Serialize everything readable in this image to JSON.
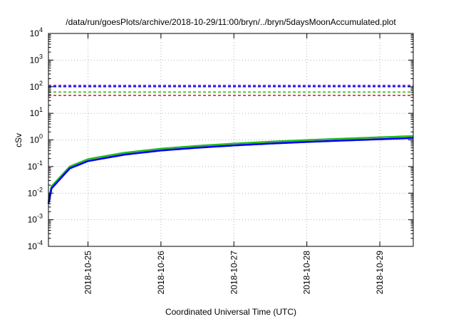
{
  "chart_data": {
    "type": "line",
    "title": "/data/run/goesPlots/archive/2018-10-29/11:00/bryn/../bryn/5daysMoonAccumulated.plot",
    "xlabel": "Coordinated Universal Time (UTC)",
    "ylabel": "cSv",
    "yscale": "log",
    "ylim_exp": [
      -4,
      4
    ],
    "y_tick_labels": [
      {
        "base": "10",
        "exp": "-4"
      },
      {
        "base": "10",
        "exp": "-3"
      },
      {
        "base": "10",
        "exp": "-2"
      },
      {
        "base": "10",
        "exp": "-1"
      },
      {
        "base": "10",
        "exp": "0"
      },
      {
        "base": "10",
        "exp": "1"
      },
      {
        "base": "10",
        "exp": "2"
      },
      {
        "base": "10",
        "exp": "3"
      },
      {
        "base": "10",
        "exp": "4"
      }
    ],
    "xlim": [
      "2018-10-24T11:00",
      "2018-10-29T11:00"
    ],
    "x_tick_labels": [
      "2018-10-25",
      "2018-10-26",
      "2018-10-27",
      "2018-10-28",
      "2018-10-29"
    ],
    "grid": true,
    "threshold_lines": [
      {
        "color": "#7b00c8",
        "value": 112
      },
      {
        "color": "#0000ff",
        "value": 100
      },
      {
        "color": "#22bb22",
        "value": 63
      },
      {
        "color": "#ff0000",
        "value": 47
      }
    ],
    "series": [
      {
        "color": "#ffd700",
        "x": [
          "2018-10-24T11:00",
          "2018-10-24T12:00",
          "2018-10-24T18:00",
          "2018-10-25T00:00",
          "2018-10-25T12:00",
          "2018-10-26T00:00",
          "2018-10-26T12:00",
          "2018-10-27T00:00",
          "2018-10-27T12:00",
          "2018-10-28T00:00",
          "2018-10-28T12:00",
          "2018-10-29T00:00",
          "2018-10-29T11:00"
        ],
        "y": [
          0.004,
          0.015,
          0.09,
          0.17,
          0.3,
          0.42,
          0.54,
          0.66,
          0.78,
          0.9,
          1.02,
          1.14,
          1.25
        ]
      },
      {
        "color": "#22bb22",
        "x": [
          "2018-10-24T11:00",
          "2018-10-24T12:00",
          "2018-10-24T18:00",
          "2018-10-25T00:00",
          "2018-10-25T12:00",
          "2018-10-26T00:00",
          "2018-10-26T12:00",
          "2018-10-27T00:00",
          "2018-10-27T12:00",
          "2018-10-28T00:00",
          "2018-10-28T12:00",
          "2018-10-29T00:00",
          "2018-10-29T11:00"
        ],
        "y": [
          0.005,
          0.018,
          0.1,
          0.19,
          0.33,
          0.47,
          0.6,
          0.73,
          0.86,
          0.99,
          1.12,
          1.26,
          1.4
        ]
      },
      {
        "color": "#0000ff",
        "x": [
          "2018-10-24T11:00",
          "2018-10-24T12:00",
          "2018-10-24T18:00",
          "2018-10-25T00:00",
          "2018-10-25T12:00",
          "2018-10-26T00:00",
          "2018-10-26T12:00",
          "2018-10-27T00:00",
          "2018-10-27T12:00",
          "2018-10-28T00:00",
          "2018-10-28T12:00",
          "2018-10-29T00:00",
          "2018-10-29T11:00"
        ],
        "y": [
          0.004,
          0.015,
          0.085,
          0.16,
          0.28,
          0.4,
          0.51,
          0.62,
          0.73,
          0.84,
          0.95,
          1.06,
          1.18
        ]
      }
    ]
  }
}
